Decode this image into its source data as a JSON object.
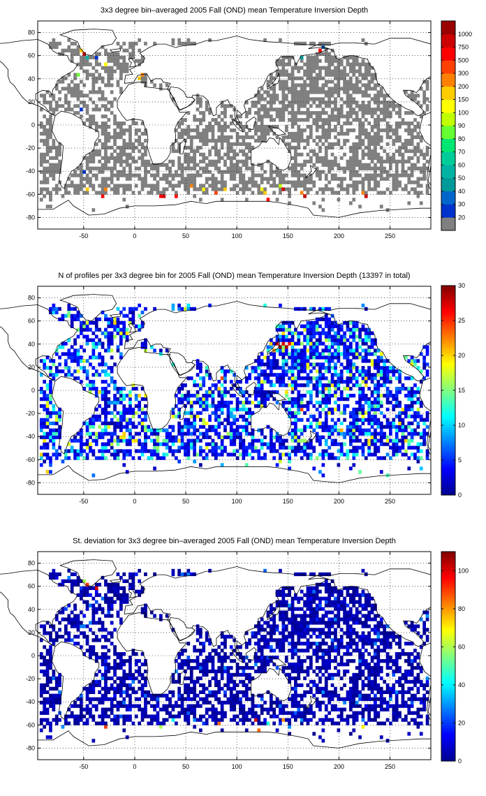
{
  "chart_data": [
    {
      "type": "heatmap",
      "title": "3x3 degree bin–averaged 2005 Fall (OND) mean Temperature Inversion Depth",
      "xlabel": "",
      "ylabel": "",
      "xlim": [
        -95,
        290
      ],
      "ylim": [
        -90,
        90
      ],
      "xticks": [
        -50,
        0,
        50,
        100,
        150,
        200,
        250
      ],
      "yticks": [
        80,
        60,
        40,
        20,
        0,
        -20,
        -40,
        -60,
        -80
      ],
      "grid": true,
      "colorbar": {
        "type": "categorical",
        "labels": [
          "20",
          "30",
          "40",
          "50",
          "60",
          "70",
          "80",
          "90",
          "100",
          "150",
          "200",
          "300",
          "500",
          "750",
          "1000"
        ],
        "colors": [
          "#808080",
          "#0033cc",
          "#0066cc",
          "#009999",
          "#00b3a3",
          "#00cc99",
          "#00e673",
          "#66ff33",
          "#bfff00",
          "#ffff00",
          "#ffcc00",
          "#ff8000",
          "#ff4000",
          "#ff0000",
          "#cc0000",
          "#990000"
        ]
      },
      "hotspots": [
        {
          "lon": -54,
          "lat": 63,
          "value": 200
        },
        {
          "lon": -51,
          "lat": 60,
          "value": 1000
        },
        {
          "lon": -48,
          "lat": 57,
          "value": 60
        },
        {
          "lon": -39,
          "lat": 57,
          "value": 30
        },
        {
          "lon": -30,
          "lat": 51,
          "value": 150
        },
        {
          "lon": -57,
          "lat": 42,
          "value": 90
        },
        {
          "lon": 3,
          "lat": 39,
          "value": 200
        },
        {
          "lon": 6,
          "lat": 42,
          "value": 300
        },
        {
          "lon": -54,
          "lat": 12,
          "value": 30
        },
        {
          "lon": -51,
          "lat": -42,
          "value": 30
        },
        {
          "lon": -48,
          "lat": -57,
          "value": 200
        },
        {
          "lon": -33,
          "lat": -63,
          "value": 750
        },
        {
          "lon": -30,
          "lat": -57,
          "value": 300
        },
        {
          "lon": 24,
          "lat": -63,
          "value": 750
        },
        {
          "lon": 27,
          "lat": -63,
          "value": 1000
        },
        {
          "lon": 39,
          "lat": -63,
          "value": 750
        },
        {
          "lon": 54,
          "lat": -54,
          "value": 300
        },
        {
          "lon": 66,
          "lat": -57,
          "value": 150
        },
        {
          "lon": 78,
          "lat": -60,
          "value": 500
        },
        {
          "lon": 87,
          "lat": -57,
          "value": 200
        },
        {
          "lon": 123,
          "lat": -57,
          "value": 150
        },
        {
          "lon": 126,
          "lat": -60,
          "value": 200
        },
        {
          "lon": 129,
          "lat": -66,
          "value": 750
        },
        {
          "lon": 141,
          "lat": -54,
          "value": 100
        },
        {
          "lon": 144,
          "lat": -57,
          "value": 1000
        },
        {
          "lon": 162,
          "lat": -60,
          "value": 300
        },
        {
          "lon": 165,
          "lat": -63,
          "value": 1000
        },
        {
          "lon": 183,
          "lat": 66,
          "value": 40
        },
        {
          "lon": 222,
          "lat": -60,
          "value": 300
        },
        {
          "lon": 225,
          "lat": -63,
          "value": 1000
        },
        {
          "lon": 162,
          "lat": 57,
          "value": 50
        },
        {
          "lon": 180,
          "lat": 63,
          "value": 750
        }
      ]
    },
    {
      "type": "heatmap",
      "title": "N of profiles per 3x3 degree bin for 2005 Fall (OND) mean Temperature Inversion Depth  (13397 in total)",
      "xlabel": "",
      "ylabel": "",
      "xlim": [
        -95,
        290
      ],
      "ylim": [
        -90,
        90
      ],
      "xticks": [
        -50,
        0,
        50,
        100,
        150,
        200,
        250
      ],
      "yticks": [
        80,
        60,
        40,
        20,
        0,
        -20,
        -40,
        -60,
        -80
      ],
      "grid": true,
      "colorbar": {
        "type": "continuous",
        "min": 0,
        "max": 30,
        "ticks": [
          0,
          5,
          10,
          15,
          20,
          25,
          30
        ],
        "colormap": "jet"
      },
      "hotspots": [
        {
          "lon": 138,
          "lat": 39,
          "value": 28
        },
        {
          "lon": 141,
          "lat": 36,
          "value": 30
        },
        {
          "lon": 144,
          "lat": 39,
          "value": 27
        },
        {
          "lon": 147,
          "lat": 36,
          "value": 29
        },
        {
          "lon": 150,
          "lat": 39,
          "value": 26
        },
        {
          "lon": 135,
          "lat": 33,
          "value": 22
        },
        {
          "lon": 84,
          "lat": 9,
          "value": 24
        },
        {
          "lon": 81,
          "lat": 0,
          "value": 20
        },
        {
          "lon": 66,
          "lat": -9,
          "value": 18
        },
        {
          "lon": 162,
          "lat": -18,
          "value": 24
        },
        {
          "lon": 201,
          "lat": -36,
          "value": 21
        },
        {
          "lon": 231,
          "lat": -42,
          "value": 19
        },
        {
          "lon": 258,
          "lat": -30,
          "value": 20
        },
        {
          "lon": -87,
          "lat": -30,
          "value": 18
        },
        {
          "lon": 9,
          "lat": 33,
          "value": 17
        },
        {
          "lon": 270,
          "lat": 24,
          "value": 15
        }
      ]
    },
    {
      "type": "heatmap",
      "title": "St. deviation for 3x3 degree bin–averaged 2005 Fall (OND) mean Temperature Inversion Depth",
      "xlabel": "",
      "ylabel": "",
      "xlim": [
        -95,
        290
      ],
      "ylim": [
        -90,
        90
      ],
      "xticks": [
        -50,
        0,
        50,
        100,
        150,
        200,
        250
      ],
      "yticks": [
        80,
        60,
        40,
        20,
        0,
        -20,
        -40,
        -60,
        -80
      ],
      "grid": true,
      "colorbar": {
        "type": "continuous",
        "min": 0,
        "max": 110,
        "ticks": [
          0,
          20,
          40,
          60,
          80,
          100
        ],
        "colormap": "jet"
      },
      "hotspots": [
        {
          "lon": -51,
          "lat": 63,
          "value": 60
        },
        {
          "lon": -48,
          "lat": 60,
          "value": 90
        },
        {
          "lon": -39,
          "lat": 57,
          "value": 100
        },
        {
          "lon": 24,
          "lat": -63,
          "value": 60
        },
        {
          "lon": 36,
          "lat": -57,
          "value": 40
        },
        {
          "lon": 81,
          "lat": -60,
          "value": 85
        },
        {
          "lon": 117,
          "lat": -57,
          "value": 100
        },
        {
          "lon": 120,
          "lat": -66,
          "value": 85
        },
        {
          "lon": 129,
          "lat": -60,
          "value": 45
        },
        {
          "lon": 144,
          "lat": -57,
          "value": 80
        },
        {
          "lon": 222,
          "lat": -63,
          "value": 70
        },
        {
          "lon": -30,
          "lat": -63,
          "value": 90
        },
        {
          "lon": 162,
          "lat": -57,
          "value": 30
        }
      ]
    }
  ]
}
